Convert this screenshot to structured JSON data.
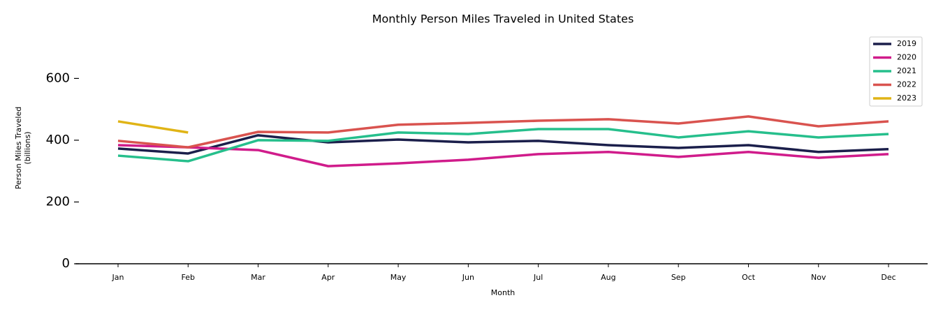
{
  "chart_data": {
    "type": "line",
    "title": "Monthly Person Miles Traveled in United States",
    "x_label": "Month",
    "y_label": "Person Miles Traveled\n(billions)",
    "categories": [
      "Jan",
      "Feb",
      "Mar",
      "Apr",
      "May",
      "Jun",
      "Jul",
      "Aug",
      "Sep",
      "Oct",
      "Nov",
      "Dec"
    ],
    "series": [
      {
        "name": "2019",
        "color": "#1b1f4b",
        "values": [
          373,
          357,
          416,
          393,
          402,
          393,
          398,
          384,
          375,
          384,
          362,
          371
        ]
      },
      {
        "name": "2020",
        "color": "#d01c8b",
        "values": [
          384,
          377,
          368,
          316,
          325,
          337,
          355,
          362,
          346,
          362,
          343,
          355
        ]
      },
      {
        "name": "2021",
        "color": "#26bf8c",
        "values": [
          350,
          332,
          400,
          398,
          425,
          420,
          436,
          436,
          409,
          429,
          409,
          420
        ]
      },
      {
        "name": "2022",
        "color": "#d9534f",
        "values": [
          398,
          377,
          427,
          425,
          450,
          456,
          463,
          468,
          454,
          477,
          445,
          461
        ]
      },
      {
        "name": "2023",
        "color": "#e0b416",
        "values": [
          461,
          425,
          null,
          null,
          null,
          null,
          null,
          null,
          null,
          null,
          null,
          null
        ]
      }
    ],
    "ylim": [
      0,
      750
    ],
    "yticks": [
      0,
      200,
      400,
      600
    ],
    "grid": false,
    "legend": "upper right"
  }
}
